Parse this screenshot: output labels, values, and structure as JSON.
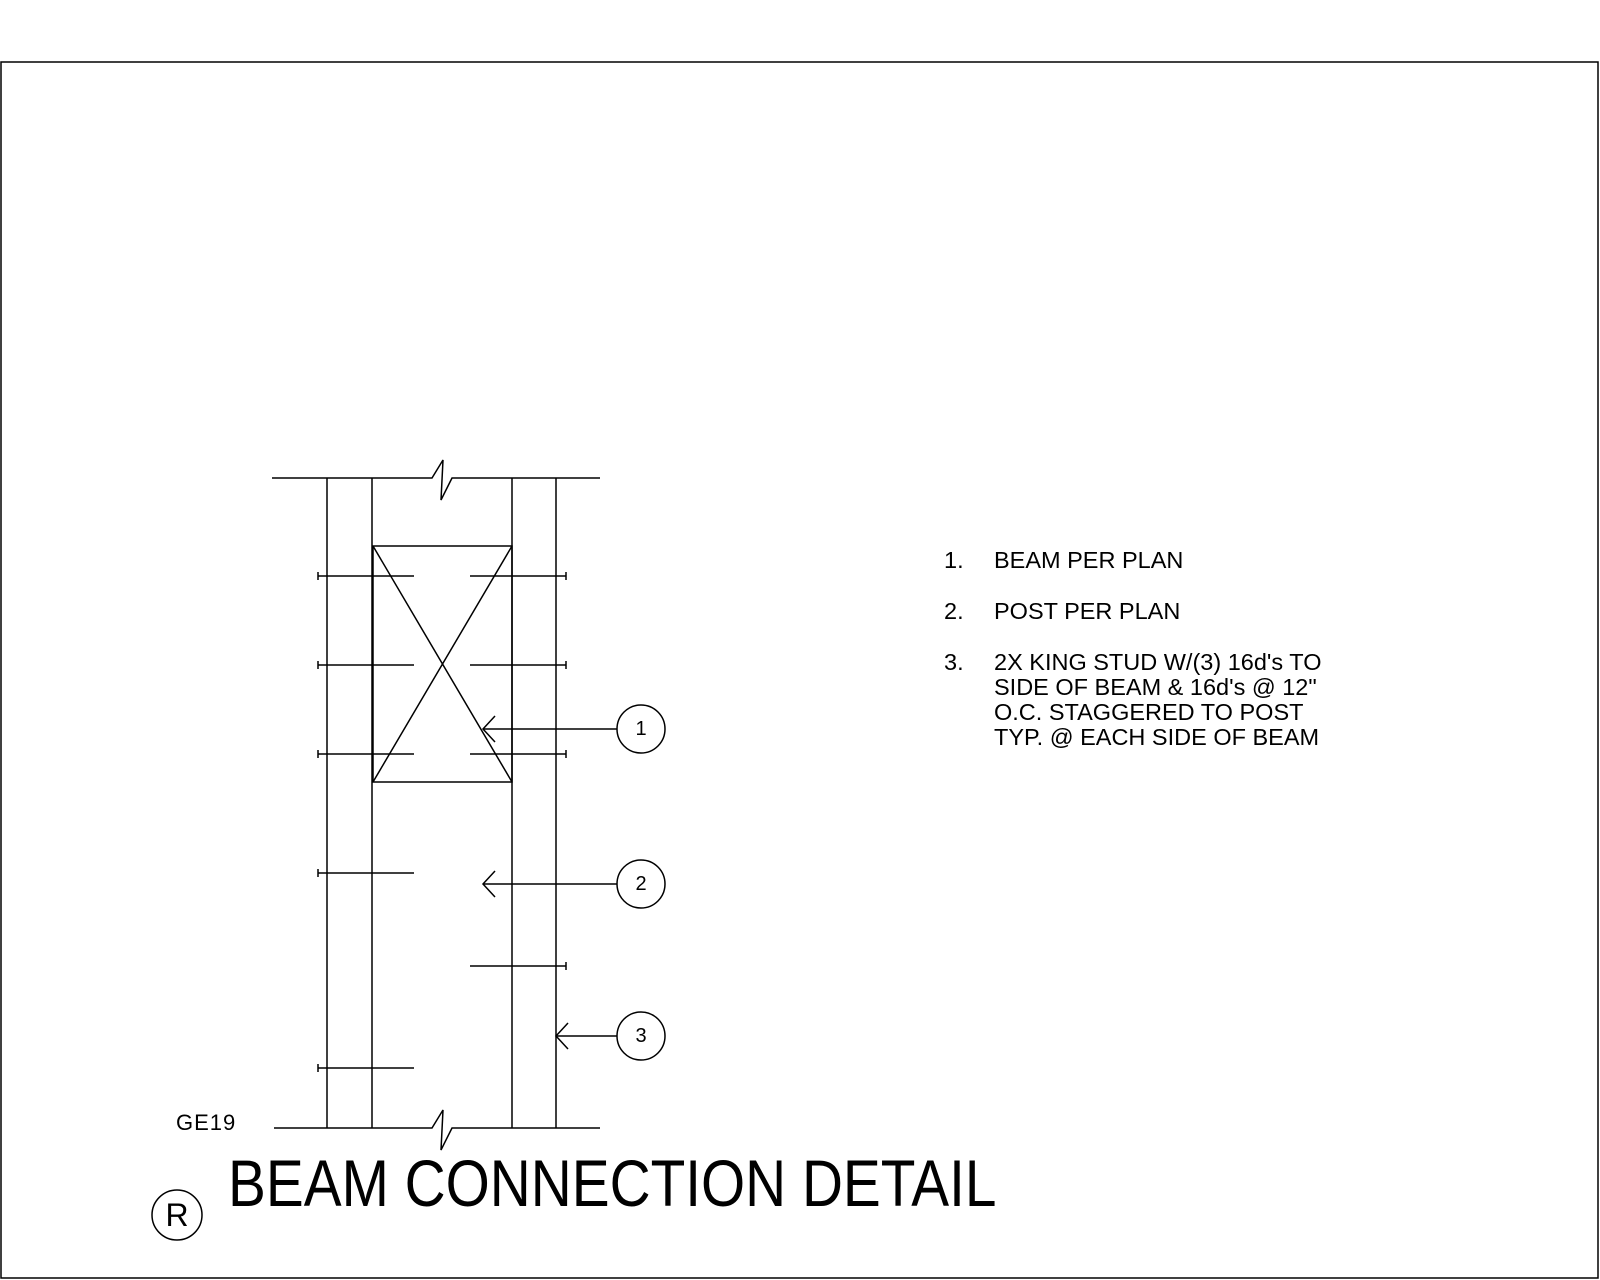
{
  "sheet": {
    "title": "BEAM CONNECTION DETAIL",
    "detail_id": "GE19",
    "tag_letter": "R"
  },
  "callouts": [
    {
      "number": "1"
    },
    {
      "number": "2"
    },
    {
      "number": "3"
    }
  ],
  "notes": [
    {
      "number": "1.",
      "text": "BEAM PER PLAN"
    },
    {
      "number": "2.",
      "text": "POST PER PLAN"
    },
    {
      "number": "3.",
      "text": "2X KING STUD W/(3) 16d's TO\nSIDE OF BEAM & 16d's @ 12\"\nO.C. STAGGERED TO POST\nTYP. @ EACH SIDE OF BEAM"
    }
  ]
}
